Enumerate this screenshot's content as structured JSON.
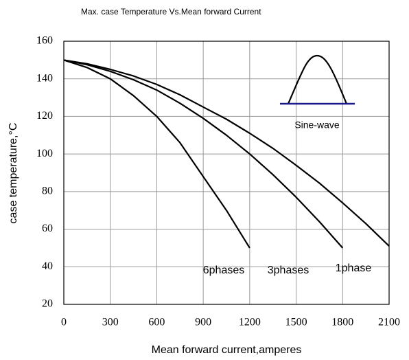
{
  "chart_data": {
    "type": "line",
    "title": "Max. case Temperature Vs.Mean forward Current",
    "xlabel": "Mean forward current,amperes",
    "ylabel": "case temperature,°C",
    "annotation": "Sine-wave",
    "xlim": [
      0,
      2100
    ],
    "xticks": [
      0,
      300,
      600,
      900,
      1200,
      1500,
      1800,
      2100
    ],
    "ylim": [
      20,
      160
    ],
    "yticks": [
      20,
      40,
      60,
      80,
      100,
      120,
      140,
      160
    ],
    "grid": true,
    "series": [
      {
        "name": "6phases",
        "color": "#000000",
        "x": [
          0,
          150,
          300,
          450,
          600,
          750,
          900,
          1050,
          1200
        ],
        "values": [
          150,
          146,
          140,
          131,
          120,
          106,
          88,
          70,
          50
        ]
      },
      {
        "name": "3phases",
        "color": "#000000",
        "x": [
          0,
          150,
          300,
          450,
          600,
          750,
          900,
          1050,
          1200,
          1350,
          1500,
          1650,
          1800
        ],
        "values": [
          150,
          147.5,
          144,
          139.5,
          134,
          127,
          119,
          110,
          100,
          89,
          77,
          64,
          50
        ]
      },
      {
        "name": "1phase",
        "color": "#000000",
        "x": [
          0,
          150,
          300,
          450,
          600,
          750,
          900,
          1050,
          1200,
          1350,
          1500,
          1650,
          1800,
          1950,
          2100
        ],
        "values": [
          150,
          148,
          145,
          141.5,
          137,
          131.5,
          125,
          118.5,
          111,
          103,
          94,
          84.5,
          74,
          63,
          51
        ]
      }
    ]
  }
}
